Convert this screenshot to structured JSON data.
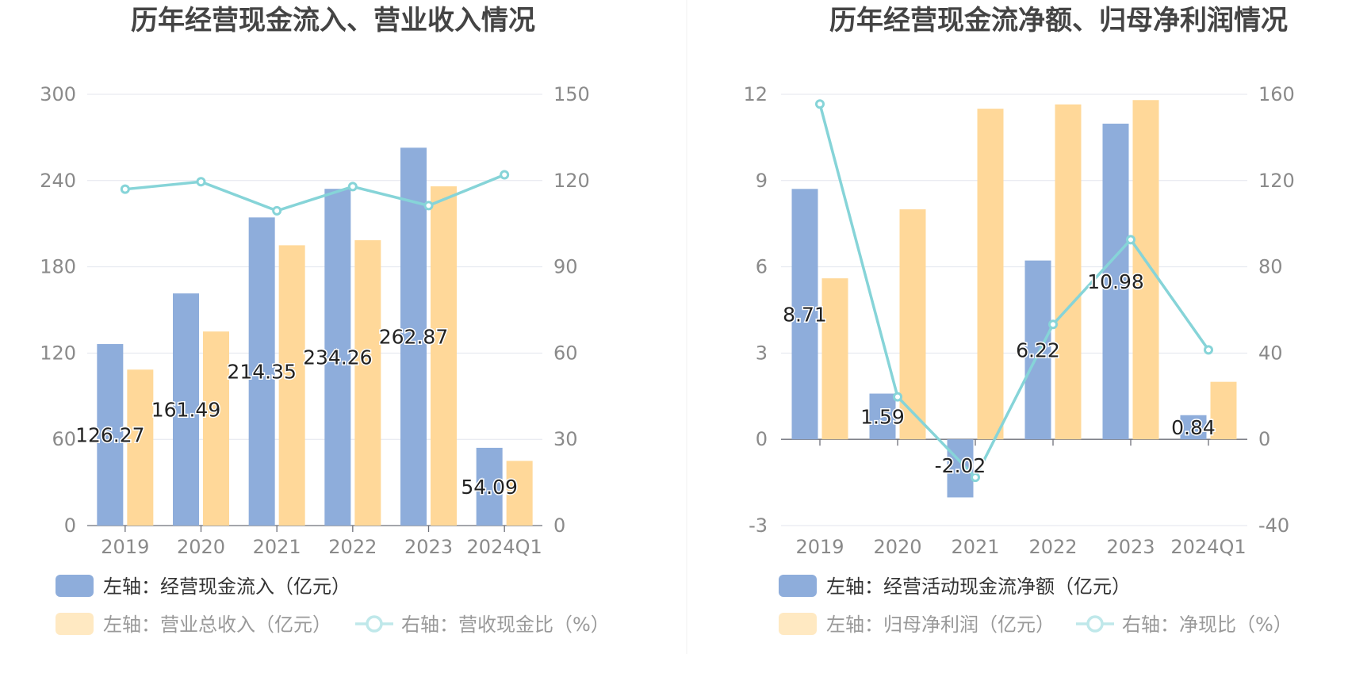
{
  "chart_data": [
    {
      "type": "bar",
      "title": "历年经营现金流入、营业收入情况",
      "categories": [
        "2019",
        "2020",
        "2021",
        "2022",
        "2023",
        "2024Q1"
      ],
      "left_axis": {
        "ticks": [
          0,
          60,
          120,
          180,
          240,
          300
        ],
        "range": [
          0,
          300
        ]
      },
      "right_axis": {
        "ticks": [
          0,
          30,
          60,
          90,
          120,
          150
        ],
        "range": [
          0,
          150
        ]
      },
      "series": [
        {
          "name": "左轴：经营现金流入（亿元）",
          "type": "bar",
          "axis": "left",
          "color": "#8EADDB",
          "values": [
            126.27,
            161.49,
            214.35,
            234.26,
            262.87,
            54.09
          ],
          "labels": [
            "126.27",
            "161.49",
            "214.35",
            "234.26",
            "262.87",
            "54.09"
          ]
        },
        {
          "name": "左轴：营业总收入（亿元）",
          "type": "bar",
          "axis": "left",
          "color": "#FFD899",
          "values": [
            108.5,
            135.0,
            195.0,
            198.5,
            236.0,
            45.0
          ]
        },
        {
          "name": "右轴：营收现金比（%）",
          "type": "line",
          "axis": "right",
          "color": "#86D4D8",
          "values": [
            117.0,
            119.6,
            109.5,
            117.9,
            111.3,
            122.0
          ]
        }
      ]
    },
    {
      "type": "bar",
      "title": "历年经营现金流净额、归母净利润情况",
      "categories": [
        "2019",
        "2020",
        "2021",
        "2022",
        "2023",
        "2024Q1"
      ],
      "left_axis": {
        "ticks": [
          -3,
          0,
          3,
          6,
          9,
          12
        ],
        "range": [
          -3,
          12
        ]
      },
      "right_axis": {
        "ticks": [
          -40,
          0,
          40,
          80,
          120,
          160
        ],
        "range": [
          -40,
          160
        ]
      },
      "series": [
        {
          "name": "左轴：经营活动现金流净额（亿元）",
          "type": "bar",
          "axis": "left",
          "color": "#8EADDB",
          "values": [
            8.71,
            1.59,
            -2.02,
            6.22,
            10.98,
            0.84
          ],
          "labels": [
            "8.71",
            "1.59",
            "-2.02",
            "6.22",
            "10.98",
            "0.84"
          ]
        },
        {
          "name": "左轴：归母净利润（亿元）",
          "type": "bar",
          "axis": "left",
          "color": "#FFD899",
          "values": [
            5.6,
            8.0,
            11.5,
            11.65,
            11.8,
            2.0
          ]
        },
        {
          "name": "右轴：净现比（%）",
          "type": "line",
          "axis": "right",
          "color": "#86D4D8",
          "values": [
            155.5,
            19.7,
            -17.6,
            53.3,
            92.6,
            41.5
          ]
        }
      ]
    }
  ]
}
